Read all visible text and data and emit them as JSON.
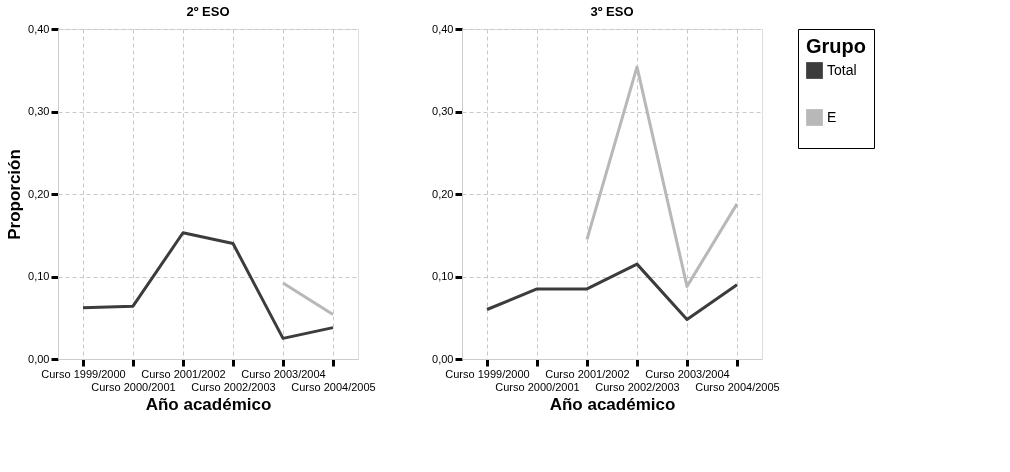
{
  "chart_data": [
    {
      "type": "line",
      "title": "2º ESO",
      "xlabel": "Año académico",
      "ylabel": "Proporción",
      "categories": [
        "Curso 1999/2000",
        "Curso 2000/2001",
        "Curso 2001/2002",
        "Curso 2002/2003",
        "Curso 2003/2004",
        "Curso 2004/2005"
      ],
      "series": [
        {
          "name": "Total",
          "color": "#3c3c3c",
          "values": [
            0.062,
            0.064,
            0.153,
            0.14,
            0.025,
            0.038
          ]
        },
        {
          "name": "E",
          "color": "#b8b8b8",
          "values": [
            null,
            null,
            null,
            null,
            0.092,
            0.054
          ]
        }
      ],
      "ylim": [
        0,
        0.4
      ],
      "yticks": [
        {
          "value": 0,
          "label": "0,00"
        },
        {
          "value": 0.1,
          "label": "0,10"
        },
        {
          "value": 0.2,
          "label": "0,20"
        },
        {
          "value": 0.3,
          "label": "0,30"
        },
        {
          "value": 0.4,
          "label": "0,40"
        }
      ],
      "grid": true,
      "legend": "top right",
      "line_style": "solid"
    },
    {
      "type": "line",
      "title": "3º ESO",
      "xlabel": "Año académico",
      "legend_title": "Grupo",
      "categories": [
        "Curso 1999/2000",
        "Curso 2000/2001",
        "Curso 2001/2002",
        "Curso 2002/2003",
        "Curso 2003/2004",
        "Curso 2004/2005"
      ],
      "series": [
        {
          "name": "Total",
          "color": "#3c3c3c",
          "values": [
            0.06,
            0.085,
            0.085,
            0.115,
            0.048,
            0.09
          ]
        },
        {
          "name": "E",
          "color": "#b8b8b8",
          "values": [
            null,
            null,
            0.145,
            0.354,
            0.088,
            0.188
          ]
        }
      ],
      "ylim": [
        0,
        0.4
      ],
      "yticks": [
        {
          "value": 0,
          "label": "0,00"
        },
        {
          "value": 0.1,
          "label": "0,10"
        },
        {
          "value": 0.2,
          "label": "0,20"
        },
        {
          "value": 0.3,
          "label": "0,30"
        },
        {
          "value": 0.4,
          "label": "0,40"
        }
      ],
      "grid": true,
      "legend": "top right",
      "line_style": "solid"
    }
  ]
}
